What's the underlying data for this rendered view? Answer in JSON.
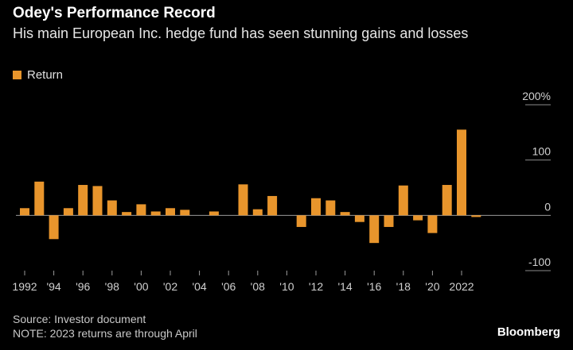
{
  "header": {
    "title": "Odey's Performance Record",
    "subtitle": "His main European Inc. hedge fund has seen stunning gains and losses"
  },
  "legend": {
    "label": "Return",
    "color": "#e8952c"
  },
  "footer": {
    "source": "Source: Investor document",
    "note": "NOTE: 2023 returns are through April",
    "brand": "Bloomberg"
  },
  "chart_data": {
    "type": "bar",
    "title": "Odey's Performance Record",
    "subtitle": "His main European Inc. hedge fund has seen stunning gains and losses",
    "xlabel": "",
    "ylabel": "",
    "y_unit": "%",
    "ylim": [
      -100,
      200
    ],
    "y_ticks": [
      {
        "value": 200,
        "label": "200%"
      },
      {
        "value": 100,
        "label": "100"
      },
      {
        "value": 0,
        "label": "0"
      },
      {
        "value": -100,
        "label": "-100"
      }
    ],
    "x_tick_labels": [
      {
        "year": 1992,
        "label": "1992"
      },
      {
        "year": 1994,
        "label": "'94"
      },
      {
        "year": 1996,
        "label": "'96"
      },
      {
        "year": 1998,
        "label": "'98"
      },
      {
        "year": 2000,
        "label": "'00"
      },
      {
        "year": 2002,
        "label": "'02"
      },
      {
        "year": 2004,
        "label": "'04"
      },
      {
        "year": 2006,
        "label": "'06"
      },
      {
        "year": 2008,
        "label": "'08"
      },
      {
        "year": 2010,
        "label": "'10"
      },
      {
        "year": 2012,
        "label": "'12"
      },
      {
        "year": 2014,
        "label": "'14"
      },
      {
        "year": 2016,
        "label": "'16"
      },
      {
        "year": 2018,
        "label": "'18"
      },
      {
        "year": 2020,
        "label": "'20"
      },
      {
        "year": 2022,
        "label": "2022"
      }
    ],
    "categories": [
      1992,
      1993,
      1994,
      1995,
      1996,
      1997,
      1998,
      1999,
      2000,
      2001,
      2002,
      2003,
      2004,
      2005,
      2006,
      2007,
      2008,
      2009,
      2010,
      2011,
      2012,
      2013,
      2014,
      2015,
      2016,
      2017,
      2018,
      2019,
      2020,
      2021,
      2022,
      2023
    ],
    "series": [
      {
        "name": "Return",
        "color": "#e8952c",
        "values": [
          13,
          61,
          -43,
          13,
          55,
          53,
          27,
          6,
          20,
          7,
          13,
          10,
          0,
          7,
          0,
          56,
          11,
          35,
          0,
          -21,
          31,
          27,
          6,
          -12,
          -50,
          -21,
          54,
          -9,
          -32,
          55,
          155,
          -3
        ]
      }
    ],
    "grid": "horizontal",
    "legend_position": "top-left"
  }
}
